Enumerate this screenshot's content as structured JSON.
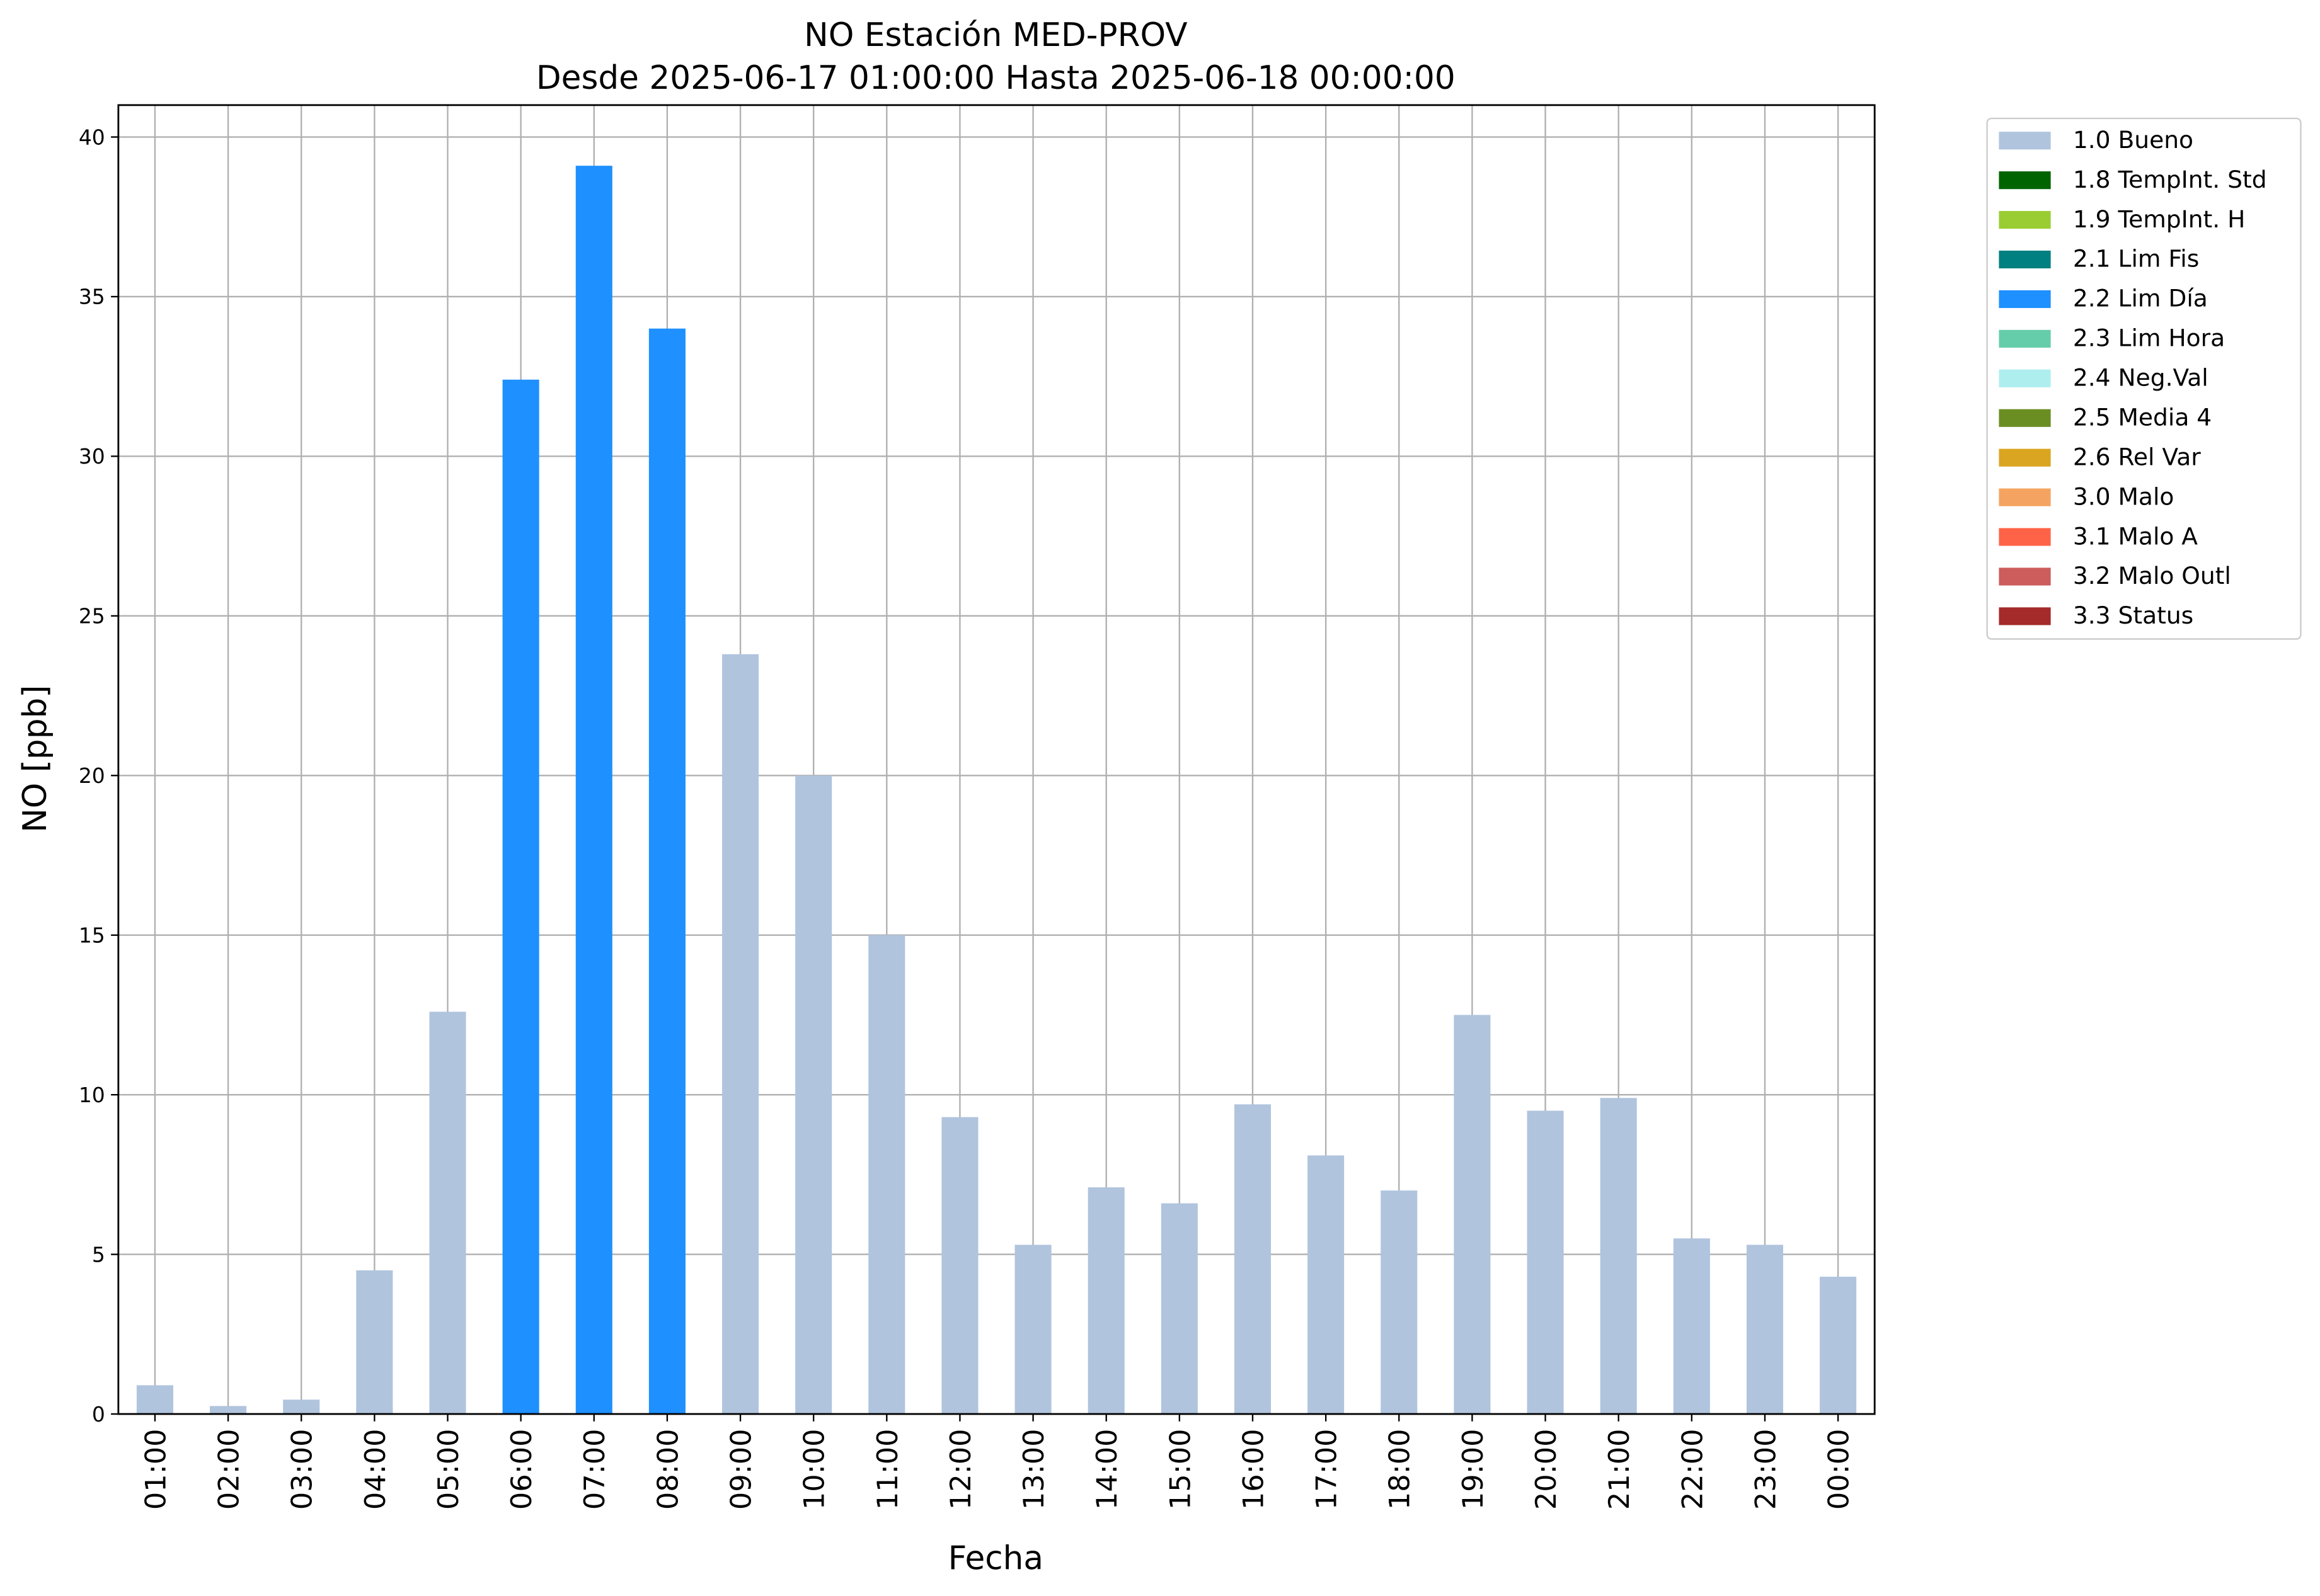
{
  "chart_data": {
    "type": "bar",
    "title": "NO Estación MED-PROV",
    "subtitle": "Desde 2025-06-17 01:00:00 Hasta 2025-06-18 00:00:00",
    "x_label": "Fecha",
    "y_label": "NO [ppb]",
    "categories": [
      "01:00",
      "02:00",
      "03:00",
      "04:00",
      "05:00",
      "06:00",
      "07:00",
      "08:00",
      "09:00",
      "10:00",
      "11:00",
      "12:00",
      "13:00",
      "14:00",
      "15:00",
      "16:00",
      "17:00",
      "18:00",
      "19:00",
      "20:00",
      "21:00",
      "22:00",
      "23:00",
      "00:00"
    ],
    "series": [
      {
        "name": "1.0 Bueno",
        "color": "#b0c4de",
        "values": [
          0.9,
          0.25,
          0.45,
          4.5,
          12.6,
          null,
          null,
          null,
          23.8,
          20.0,
          15.0,
          9.3,
          5.3,
          7.1,
          6.6,
          9.7,
          8.1,
          7.0,
          12.5,
          9.5,
          9.9,
          5.5,
          5.3,
          4.3
        ]
      },
      {
        "name": "1.8 TempInt. Std",
        "color": "#006400",
        "values": [
          null,
          null,
          null,
          null,
          null,
          null,
          null,
          null,
          null,
          null,
          null,
          null,
          null,
          null,
          null,
          null,
          null,
          null,
          null,
          null,
          null,
          null,
          null,
          null
        ]
      },
      {
        "name": "1.9 TempInt. H",
        "color": "#9acd32",
        "values": [
          null,
          null,
          null,
          null,
          null,
          null,
          null,
          null,
          null,
          null,
          null,
          null,
          null,
          null,
          null,
          null,
          null,
          null,
          null,
          null,
          null,
          null,
          null,
          null
        ]
      },
      {
        "name": "2.1 Lim Fis",
        "color": "#008080",
        "values": [
          null,
          null,
          null,
          null,
          null,
          null,
          null,
          null,
          null,
          null,
          null,
          null,
          null,
          null,
          null,
          null,
          null,
          null,
          null,
          null,
          null,
          null,
          null,
          null
        ]
      },
      {
        "name": "2.2 Lim Día",
        "color": "#1e90ff",
        "values": [
          null,
          null,
          null,
          null,
          null,
          32.4,
          39.1,
          34.0,
          null,
          null,
          null,
          null,
          null,
          null,
          null,
          null,
          null,
          null,
          null,
          null,
          null,
          null,
          null,
          null
        ]
      },
      {
        "name": "2.3 Lim Hora",
        "color": "#66cdaa",
        "values": [
          null,
          null,
          null,
          null,
          null,
          null,
          null,
          null,
          null,
          null,
          null,
          null,
          null,
          null,
          null,
          null,
          null,
          null,
          null,
          null,
          null,
          null,
          null,
          null
        ]
      },
      {
        "name": "2.4 Neg.Val",
        "color": "#afeeee",
        "values": [
          null,
          null,
          null,
          null,
          null,
          null,
          null,
          null,
          null,
          null,
          null,
          null,
          null,
          null,
          null,
          null,
          null,
          null,
          null,
          null,
          null,
          null,
          null,
          null
        ]
      },
      {
        "name": "2.5 Media 4",
        "color": "#6b8e23",
        "values": [
          null,
          null,
          null,
          null,
          null,
          null,
          null,
          null,
          null,
          null,
          null,
          null,
          null,
          null,
          null,
          null,
          null,
          null,
          null,
          null,
          null,
          null,
          null,
          null
        ]
      },
      {
        "name": "2.6 Rel Var",
        "color": "#daa520",
        "values": [
          null,
          null,
          null,
          null,
          null,
          null,
          null,
          null,
          null,
          null,
          null,
          null,
          null,
          null,
          null,
          null,
          null,
          null,
          null,
          null,
          null,
          null,
          null,
          null
        ]
      },
      {
        "name": "3.0 Malo",
        "color": "#f4a460",
        "values": [
          null,
          null,
          null,
          null,
          null,
          null,
          null,
          null,
          null,
          null,
          null,
          null,
          null,
          null,
          null,
          null,
          null,
          null,
          null,
          null,
          null,
          null,
          null,
          null
        ]
      },
      {
        "name": "3.1 Malo A",
        "color": "#ff6347",
        "values": [
          null,
          null,
          null,
          null,
          null,
          null,
          null,
          null,
          null,
          null,
          null,
          null,
          null,
          null,
          null,
          null,
          null,
          null,
          null,
          null,
          null,
          null,
          null,
          null
        ]
      },
      {
        "name": "3.2 Malo Outl",
        "color": "#cd5c5c",
        "values": [
          null,
          null,
          null,
          null,
          null,
          null,
          null,
          null,
          null,
          null,
          null,
          null,
          null,
          null,
          null,
          null,
          null,
          null,
          null,
          null,
          null,
          null,
          null,
          null
        ]
      },
      {
        "name": "3.3 Status",
        "color": "#a52a2a",
        "values": [
          null,
          null,
          null,
          null,
          null,
          null,
          null,
          null,
          null,
          null,
          null,
          null,
          null,
          null,
          null,
          null,
          null,
          null,
          null,
          null,
          null,
          null,
          null,
          null
        ]
      }
    ],
    "ylim": [
      0,
      41.0
    ],
    "yticks": [
      0,
      5,
      10,
      15,
      20,
      25,
      30,
      35,
      40
    ],
    "grid": true,
    "legend": "outside-right"
  }
}
